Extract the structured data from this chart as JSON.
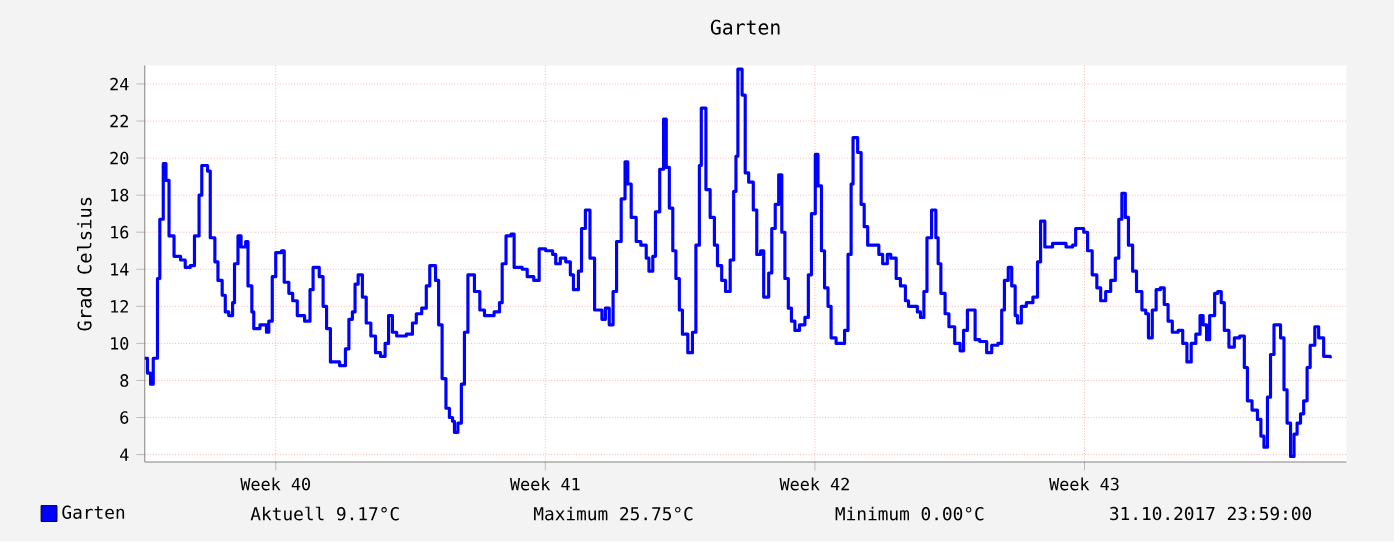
{
  "chart_data": {
    "type": "step",
    "title": "Garten",
    "ylabel": "Grad Celsius",
    "x": [
      "2017-10-02T02:24",
      "2017-10-02T04:05",
      "2017-10-02T06:00",
      "2017-10-02T07:41",
      "2017-10-02T10:19",
      "2017-10-02T11:46",
      "2017-10-02T13:55",
      "2017-10-02T15:36",
      "2017-10-02T17:31",
      "2017-10-02T20:38",
      "2017-10-03T00:43",
      "2017-10-03T03:36",
      "2017-10-03T06:43",
      "2017-10-03T09:22",
      "2017-10-03T12:14",
      "2017-10-03T13:55",
      "2017-10-03T17:31",
      "2017-10-03T19:12",
      "2017-10-03T22:05",
      "2017-10-04T00:00",
      "2017-10-04T02:38",
      "2017-10-04T04:34",
      "2017-10-04T06:43",
      "2017-10-04T09:07",
      "2017-10-04T10:19",
      "2017-10-04T12:29",
      "2017-10-04T14:24",
      "2017-10-04T17:17",
      "2017-10-04T18:43",
      "2017-10-04T21:07",
      "2017-10-04T22:19",
      "2017-10-05T02:10",
      "2017-10-05T06:14",
      "2017-10-05T07:41",
      "2017-10-05T09:50",
      "2017-10-05T12:00",
      "2017-10-05T15:36",
      "2017-10-05T17:17",
      "2017-10-05T20:10",
      "2017-10-05T22:34",
      "2017-10-06T01:26",
      "2017-10-06T06:00",
      "2017-10-06T09:22",
      "2017-10-06T11:17",
      "2017-10-06T15:07",
      "2017-10-06T17:31",
      "2017-10-06T19:41",
      "2017-10-06T22:05",
      "2017-10-07T01:26",
      "2017-10-07T03:50",
      "2017-10-07T07:26",
      "2017-10-07T09:36",
      "2017-10-07T11:46",
      "2017-10-07T13:26",
      "2017-10-07T15:22",
      "2017-10-07T18:00",
      "2017-10-07T20:24",
      "2017-10-07T23:17",
      "2017-10-08T02:10",
      "2017-10-08T05:17",
      "2017-10-08T08:10",
      "2017-10-08T10:19",
      "2017-10-08T12:43",
      "2017-10-08T15:22",
      "2017-10-08T21:22",
      "2017-10-09T01:12",
      "2017-10-09T03:36",
      "2017-10-09T06:58",
      "2017-10-09T09:50",
      "2017-10-09T12:00",
      "2017-10-09T15:36",
      "2017-10-09T17:31",
      "2017-10-09T19:41",
      "2017-10-09T22:05",
      "2017-10-10T00:14",
      "2017-10-10T02:10",
      "2017-10-10T03:22",
      "2017-10-10T05:31",
      "2017-10-10T07:41",
      "2017-10-10T09:36",
      "2017-10-10T11:46",
      "2017-10-10T15:50",
      "2017-10-10T19:12",
      "2017-10-10T22:05",
      "2017-10-11T04:05",
      "2017-10-11T07:26",
      "2017-10-11T09:07",
      "2017-10-11T11:31",
      "2017-10-11T14:38",
      "2017-10-11T16:34",
      "2017-10-11T21:36",
      "2017-10-12T00:43",
      "2017-10-12T04:48",
      "2017-10-12T08:10",
      "2017-10-12T12:14",
      "2017-10-12T16:34",
      "2017-10-12T18:29",
      "2017-10-12T21:22",
      "2017-10-13T00:43",
      "2017-10-13T03:36",
      "2017-10-13T05:31",
      "2017-10-13T08:38",
      "2017-10-13T10:34",
      "2017-10-13T12:58",
      "2017-10-13T15:50",
      "2017-10-13T18:43",
      "2017-10-13T23:17",
      "2017-10-14T01:26",
      "2017-10-14T03:50",
      "2017-10-14T06:14",
      "2017-10-14T08:24",
      "2017-10-14T11:17",
      "2017-10-14T13:41",
      "2017-10-14T15:22",
      "2017-10-14T17:31",
      "2017-10-14T20:38",
      "2017-10-14T23:31",
      "2017-10-15T02:53",
      "2017-10-15T04:34",
      "2017-10-15T06:58",
      "2017-10-15T08:38",
      "2017-10-15T11:17",
      "2017-10-15T13:41",
      "2017-10-15T15:22",
      "2017-10-15T17:17",
      "2017-10-15T19:26",
      "2017-10-15T21:22",
      "2017-10-15T23:31",
      "2017-10-16T01:26",
      "2017-10-16T04:48",
      "2017-10-16T07:41",
      "2017-10-16T09:50",
      "2017-10-16T12:00",
      "2017-10-16T13:12",
      "2017-10-16T16:05",
      "2017-10-16T18:43",
      "2017-10-16T21:22",
      "2017-10-16T23:17",
      "2017-10-17T01:55",
      "2017-10-17T04:19",
      "2017-10-17T07:12",
      "2017-10-17T09:22",
      "2017-10-17T10:48",
      "2017-10-17T12:00",
      "2017-10-17T14:38",
      "2017-10-17T16:34",
      "2017-10-17T18:43",
      "2017-10-17T21:36",
      "2017-10-17T23:46",
      "2017-10-18T02:10",
      "2017-10-18T04:05",
      "2017-10-18T07:12",
      "2017-10-18T09:07",
      "2017-10-18T11:17",
      "2017-10-18T13:26",
      "2017-10-18T15:22",
      "2017-10-18T17:17",
      "2017-10-18T19:26",
      "2017-10-18T21:22",
      "2017-10-18T23:31",
      "2017-10-19T02:24",
      "2017-10-19T05:46",
      "2017-10-19T07:55",
      "2017-10-19T09:50",
      "2017-10-19T12:14",
      "2017-10-19T13:55",
      "2017-10-19T16:05",
      "2017-10-19T18:00",
      "2017-10-19T20:10",
      "2017-10-19T22:05",
      "2017-10-20T01:12",
      "2017-10-20T04:19",
      "2017-10-20T06:29",
      "2017-10-20T08:38",
      "2017-10-20T10:34",
      "2017-10-20T11:46",
      "2017-10-20T14:38",
      "2017-10-20T16:48",
      "2017-10-20T18:43",
      "2017-10-20T20:53",
      "2017-10-21T00:58",
      "2017-10-21T03:50",
      "2017-10-21T06:14",
      "2017-10-21T09:07",
      "2017-10-21T11:17",
      "2017-10-21T14:38",
      "2017-10-21T17:17",
      "2017-10-21T20:24",
      "2017-10-21T22:19",
      "2017-10-22T03:50",
      "2017-10-22T05:46",
      "2017-10-22T07:55",
      "2017-10-22T09:50",
      "2017-10-22T12:43",
      "2017-10-22T15:22",
      "2017-10-22T16:48",
      "2017-10-22T18:29",
      "2017-10-22T21:07",
      "2017-10-22T23:31",
      "2017-10-23T03:07",
      "2017-10-23T06:29",
      "2017-10-23T08:38",
      "2017-10-23T11:02",
      "2017-10-23T15:50",
      "2017-10-23T18:43",
      "2017-10-23T23:02",
      "2017-10-24T02:10",
      "2017-10-24T06:00",
      "2017-10-24T08:24",
      "2017-10-24T10:05",
      "2017-10-24T12:29",
      "2017-10-24T14:38",
      "2017-10-24T16:48",
      "2017-10-24T18:14",
      "2017-10-24T20:38",
      "2017-10-24T23:46",
      "2017-10-25T03:50",
      "2017-10-25T06:43",
      "2017-10-25T08:38",
      "2017-10-25T11:17",
      "2017-10-25T16:05",
      "2017-10-26T00:29",
      "2017-10-26T04:34",
      "2017-10-26T06:29",
      "2017-10-26T11:31",
      "2017-10-26T13:55",
      "2017-10-26T16:48",
      "2017-10-26T19:41",
      "2017-10-26T22:05",
      "2017-10-27T01:12",
      "2017-10-27T04:19",
      "2017-10-27T07:12",
      "2017-10-27T09:22",
      "2017-10-27T11:17",
      "2017-10-27T13:26",
      "2017-10-27T15:22",
      "2017-10-27T18:00",
      "2017-10-27T20:24",
      "2017-10-27T23:46",
      "2017-10-28T02:10",
      "2017-10-28T03:50",
      "2017-10-28T06:14",
      "2017-10-28T08:38",
      "2017-10-28T11:17",
      "2017-10-28T13:41",
      "2017-10-28T16:05",
      "2017-10-28T18:43",
      "2017-10-28T22:19",
      "2017-10-29T01:12",
      "2017-10-29T03:50",
      "2017-10-29T06:29",
      "2017-10-29T09:22",
      "2017-10-29T12:00",
      "2017-10-29T13:55",
      "2017-10-29T16:05",
      "2017-10-29T18:00",
      "2017-10-29T21:07",
      "2017-10-29T23:02",
      "2017-10-30T01:12",
      "2017-10-30T03:07",
      "2017-10-30T06:00",
      "2017-10-30T09:22",
      "2017-10-30T12:43",
      "2017-10-30T15:36",
      "2017-10-30T17:31",
      "2017-10-30T20:24",
      "2017-10-30T23:46",
      "2017-10-31T01:55",
      "2017-10-31T03:50",
      "2017-10-31T06:00",
      "2017-10-31T07:55",
      "2017-10-31T10:05",
      "2017-10-31T12:00",
      "2017-10-31T14:10",
      "2017-10-31T16:19",
      "2017-10-31T18:14",
      "2017-10-31T20:24",
      "2017-10-31T22:34",
      "2017-11-01T00:29",
      "2017-11-01T02:38",
      "2017-11-01T04:34",
      "2017-11-01T06:43",
      "2017-11-01T08:38",
      "2017-11-01T11:31",
      "2017-11-01T13:55",
      "2017-11-01T17:02",
      "2017-11-01T21:07"
    ],
    "series": [
      {
        "name": "Garten",
        "color": "#0000ff",
        "values": [
          9.2,
          8.4,
          7.8,
          9.2,
          13.5,
          16.7,
          19.7,
          18.8,
          15.8,
          14.7,
          14.5,
          14.1,
          14.2,
          15.8,
          18.0,
          19.6,
          19.3,
          15.7,
          14.4,
          13.4,
          12.6,
          11.7,
          11.5,
          12.2,
          14.3,
          15.8,
          15.2,
          15.5,
          13.1,
          11.7,
          10.8,
          11.0,
          10.6,
          11.2,
          13.6,
          14.9,
          15.0,
          13.3,
          12.7,
          12.3,
          11.5,
          11.2,
          12.9,
          14.1,
          13.6,
          12.0,
          10.8,
          9.0,
          9.0,
          8.8,
          9.7,
          11.3,
          11.7,
          13.2,
          13.7,
          12.5,
          11.1,
          10.4,
          9.5,
          9.3,
          10.0,
          11.5,
          10.6,
          10.4,
          10.5,
          11.1,
          11.6,
          11.9,
          13.1,
          14.2,
          13.4,
          11.0,
          8.1,
          6.5,
          6.0,
          5.8,
          5.2,
          5.7,
          7.8,
          10.6,
          13.7,
          12.8,
          11.8,
          11.5,
          11.7,
          12.2,
          14.3,
          15.8,
          15.9,
          14.1,
          14.0,
          13.6,
          13.4,
          15.1,
          15.0,
          14.8,
          14.3,
          14.6,
          14.4,
          13.7,
          12.9,
          13.9,
          16.2,
          17.2,
          14.6,
          11.8,
          11.3,
          11.9,
          11.0,
          12.8,
          15.5,
          17.8,
          19.8,
          18.6,
          16.8,
          15.5,
          15.3,
          14.6,
          13.9,
          14.7,
          17.1,
          19.4,
          22.1,
          19.5,
          17.3,
          15.0,
          13.5,
          11.8,
          10.5,
          9.5,
          10.6,
          15.3,
          19.6,
          22.7,
          18.3,
          16.8,
          15.3,
          14.2,
          13.4,
          12.8,
          14.5,
          18.2,
          20.1,
          24.8,
          23.4,
          19.2,
          18.7,
          17.2,
          14.8,
          15.0,
          12.5,
          13.8,
          16.2,
          17.5,
          19.1,
          16.0,
          13.5,
          11.9,
          11.2,
          10.7,
          11.0,
          11.4,
          13.7,
          17.0,
          20.2,
          18.5,
          15.0,
          13.0,
          12.0,
          10.3,
          10.0,
          10.0,
          10.7,
          14.8,
          18.6,
          21.1,
          20.3,
          17.5,
          16.3,
          15.3,
          15.3,
          14.8,
          14.3,
          14.8,
          14.6,
          13.5,
          13.1,
          12.3,
          12.0,
          11.7,
          11.4,
          12.8,
          15.7,
          17.2,
          15.7,
          14.3,
          12.7,
          11.6,
          10.9,
          10.0,
          9.6,
          10.7,
          11.8,
          10.2,
          10.1,
          9.5,
          9.9,
          10.0,
          11.8,
          13.4,
          14.1,
          13.1,
          11.5,
          11.1,
          12.0,
          12.2,
          12.5,
          14.4,
          16.6,
          15.2,
          15.4,
          15.2,
          15.3,
          16.2,
          16.0,
          15.0,
          13.7,
          13.0,
          12.3,
          12.8,
          13.4,
          14.6,
          16.7,
          18.1,
          16.8,
          15.3,
          13.9,
          12.8,
          11.8,
          11.6,
          10.3,
          11.8,
          12.9,
          13.0,
          12.1,
          11.2,
          10.6,
          10.7,
          10.0,
          9.0,
          10.0,
          10.5,
          11.5,
          11.0,
          10.2,
          11.5,
          12.7,
          12.8,
          12.2,
          10.7,
          9.8,
          10.3,
          10.4,
          8.7,
          6.9,
          6.4,
          5.9,
          5.0,
          4.4,
          7.1,
          9.4,
          11.0,
          11.0,
          10.3,
          7.5,
          5.7,
          3.9,
          5.1,
          5.7,
          6.2,
          6.9,
          8.7,
          9.9,
          10.9,
          10.3,
          9.3,
          9.2
        ]
      }
    ],
    "xlim": [
      "2017-10-02T02:24",
      "2017-11-02T07:12"
    ],
    "xticks": [
      {
        "value": "2017-10-05T12:00",
        "label": "Week 40"
      },
      {
        "value": "2017-10-12T12:00",
        "label": "Week 41"
      },
      {
        "value": "2017-10-19T12:00",
        "label": "Week 42"
      },
      {
        "value": "2017-10-26T12:00",
        "label": "Week 43"
      }
    ],
    "ylim": [
      3.6,
      25
    ],
    "yticks": [
      4,
      6,
      8,
      10,
      12,
      14,
      16,
      18,
      20,
      22,
      24
    ],
    "grid": true,
    "legend": "bottom",
    "marker": "none",
    "line_style": "solid",
    "annotations": [
      "Aktuell 9.17°C",
      "Maximum 25.75°C",
      "Minimum 0.00°C",
      "31.10.2017 23:59:00"
    ]
  }
}
